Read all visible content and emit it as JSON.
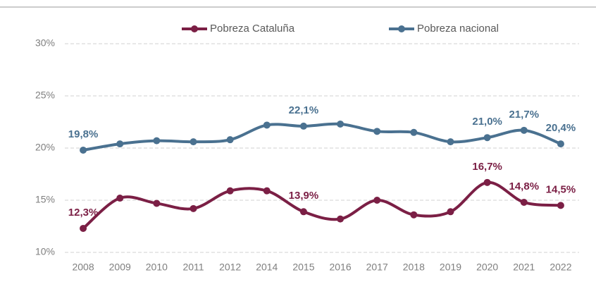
{
  "chart_data": {
    "type": "line",
    "categories": [
      "2008",
      "2009",
      "2010",
      "2011",
      "2012",
      "2014",
      "2015",
      "2016",
      "2017",
      "2018",
      "2019",
      "2020",
      "2021",
      "2022"
    ],
    "series": [
      {
        "name": "Pobreza Cataluña",
        "color": "#7b1f45",
        "values": [
          12.3,
          15.2,
          14.7,
          14.2,
          15.9,
          15.9,
          13.9,
          13.2,
          15.0,
          13.6,
          13.9,
          16.7,
          14.8,
          14.5
        ],
        "value_labels": [
          "12,3%",
          null,
          null,
          null,
          null,
          null,
          "13,9%",
          null,
          null,
          null,
          null,
          "16,7%",
          "14,8%",
          "14,5%"
        ]
      },
      {
        "name": "Pobreza nacional",
        "color": "#4a7190",
        "values": [
          19.8,
          20.4,
          20.7,
          20.6,
          20.8,
          22.2,
          22.1,
          22.3,
          21.6,
          21.5,
          20.6,
          21.0,
          21.7,
          20.4
        ],
        "value_labels": [
          "19,8%",
          null,
          null,
          null,
          null,
          null,
          "22,1%",
          null,
          null,
          null,
          null,
          "21,0%",
          "21,7%",
          "20,4%"
        ]
      }
    ],
    "ylim": [
      10,
      30
    ],
    "yticks": [
      {
        "value": 10,
        "label": "10%"
      },
      {
        "value": 15,
        "label": "15%"
      },
      {
        "value": 20,
        "label": "20%"
      },
      {
        "value": 25,
        "label": "25%"
      },
      {
        "value": 30,
        "label": "30%"
      }
    ],
    "grid": true,
    "legend": "top"
  }
}
